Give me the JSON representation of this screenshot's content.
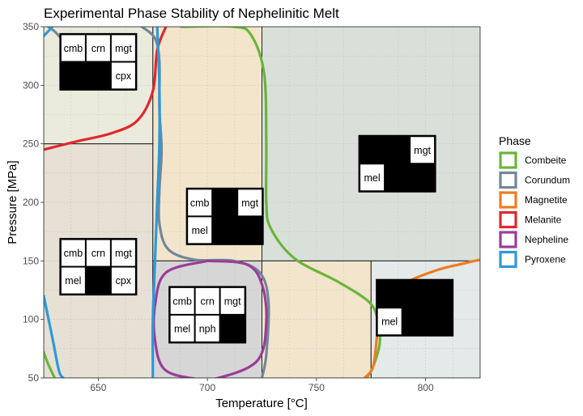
{
  "chart_data": {
    "type": "phase-diagram",
    "title": "Experimental Phase Stability of Nephelinitic Melt",
    "xlabel": "Temperature [°C]",
    "ylabel": "Pressure [MPa]",
    "xlim": [
      625,
      825
    ],
    "ylim": [
      50,
      350
    ],
    "x_ticks": [
      650,
      700,
      750,
      800
    ],
    "y_ticks": [
      50,
      100,
      150,
      200,
      250,
      300,
      350
    ],
    "legend": {
      "title": "Phase",
      "position": "right",
      "entries": [
        {
          "name": "Combeite",
          "color": "#6ab53a"
        },
        {
          "name": "Corundum",
          "color": "#72879a"
        },
        {
          "name": "Magnetite",
          "color": "#ef7b21"
        },
        {
          "name": "Melanite",
          "color": "#e0282c"
        },
        {
          "name": "Nepheline",
          "color": "#9a3d98"
        },
        {
          "name": "Pyroxene",
          "color": "#2b9ad9"
        }
      ]
    },
    "regions": [
      {
        "x": [
          625,
          675
        ],
        "y": [
          250,
          350
        ],
        "fill": "#ebebdd"
      },
      {
        "x": [
          625,
          675
        ],
        "y": [
          50,
          250
        ],
        "fill": "#e6e0d5"
      },
      {
        "x": [
          675,
          725
        ],
        "y": [
          150,
          350
        ],
        "fill": "#f2e5cc"
      },
      {
        "x": [
          675,
          725
        ],
        "y": [
          50,
          150
        ],
        "fill": "#d6d6d6"
      },
      {
        "x": [
          725,
          775
        ],
        "y": [
          50,
          150
        ],
        "fill": "#f2e5cc"
      },
      {
        "x": [
          725,
          825
        ],
        "y": [
          150,
          350
        ],
        "fill": "#d9e0d9"
      },
      {
        "x": [
          775,
          825
        ],
        "y": [
          50,
          150
        ],
        "fill": "#e4e9e9"
      }
    ],
    "phase_boundaries": [
      {
        "phase": "Combeite",
        "points": [
          [
            688,
            350
          ],
          [
            712,
            350
          ],
          [
            720,
            343
          ],
          [
            726,
            310
          ],
          [
            727,
            250
          ],
          [
            727,
            200
          ],
          [
            729,
            178
          ],
          [
            740,
            152
          ],
          [
            760,
            132
          ],
          [
            774,
            115
          ],
          [
            778,
            100
          ],
          [
            779,
            80
          ],
          [
            776,
            60
          ],
          [
            773,
            50
          ]
        ]
      },
      {
        "phase": "Combeite",
        "points": [
          [
            625,
            72
          ],
          [
            627,
            62
          ],
          [
            630,
            50
          ]
        ]
      },
      {
        "phase": "Corundum",
        "points": [
          [
            670,
            350
          ],
          [
            676,
            340
          ],
          [
            678,
            320
          ],
          [
            678,
            280
          ],
          [
            679,
            245
          ],
          [
            678,
            210
          ],
          [
            678,
            182
          ],
          [
            682,
            160
          ],
          [
            694,
            151
          ],
          [
            712,
            150
          ],
          [
            724,
            140
          ],
          [
            728,
            115
          ],
          [
            727,
            70
          ],
          [
            725,
            50
          ]
        ]
      },
      {
        "phase": "Corundum",
        "points": [
          [
            627,
            350
          ],
          [
            630,
            346
          ],
          [
            633,
            340
          ]
        ]
      },
      {
        "phase": "Magnetite",
        "points": [
          [
            772,
            50
          ],
          [
            776,
            60
          ],
          [
            778,
            90
          ],
          [
            780,
            110
          ],
          [
            790,
            130
          ],
          [
            805,
            142
          ],
          [
            818,
            148
          ],
          [
            825,
            151
          ]
        ]
      },
      {
        "phase": "Melanite",
        "points": [
          [
            625,
            245
          ],
          [
            640,
            252
          ],
          [
            656,
            259
          ],
          [
            668,
            270
          ],
          [
            675,
            295
          ],
          [
            677,
            330
          ],
          [
            681,
            350
          ]
        ]
      },
      {
        "phase": "Nepheline",
        "points": [
          [
            700,
            150
          ],
          [
            718,
            147
          ],
          [
            725,
            130
          ],
          [
            727,
            98
          ],
          [
            723,
            65
          ],
          [
            705,
            50
          ],
          [
            692,
            50
          ],
          [
            680,
            58
          ],
          [
            676,
            82
          ],
          [
            676,
            112
          ],
          [
            681,
            140
          ],
          [
            700,
            150
          ]
        ]
      },
      {
        "phase": "Pyroxene",
        "points": [
          [
            629,
            350
          ],
          [
            625,
            342
          ]
        ]
      },
      {
        "phase": "Pyroxene",
        "points": [
          [
            625,
            120
          ],
          [
            629,
            84
          ],
          [
            632,
            56
          ],
          [
            634,
            50
          ]
        ]
      },
      {
        "phase": "Pyroxene",
        "points": [
          [
            677,
            350
          ],
          [
            678,
            300
          ],
          [
            678,
            250
          ],
          [
            677,
            200
          ],
          [
            676,
            150
          ],
          [
            675,
            100
          ],
          [
            675,
            60
          ],
          [
            675,
            50
          ]
        ]
      }
    ],
    "label_grids": [
      {
        "pos": [
          650,
          320
        ],
        "rows": [
          [
            "cmb",
            "crn",
            "mgt"
          ],
          [
            null,
            null,
            "cpx"
          ]
        ]
      },
      {
        "pos": [
          650,
          145
        ],
        "rows": [
          [
            "cmb",
            "crn",
            "mgt"
          ],
          [
            "mel",
            null,
            "cpx"
          ]
        ]
      },
      {
        "pos": [
          700,
          104
        ],
        "rows": [
          [
            "cmb",
            "crn",
            "mgt"
          ],
          [
            "mel",
            "nph",
            null
          ]
        ]
      },
      {
        "pos": [
          708,
          188
        ],
        "rows": [
          [
            "cmb",
            null,
            "mgt"
          ],
          [
            "mel",
            null,
            null
          ]
        ]
      },
      {
        "pos": [
          787,
          233
        ],
        "rows": [
          [
            null,
            null,
            "mgt"
          ],
          [
            "mel",
            null,
            null
          ]
        ]
      },
      {
        "pos": [
          795,
          110
        ],
        "rows": [
          [
            null,
            null,
            null
          ],
          [
            "mel",
            null,
            null
          ]
        ]
      }
    ]
  }
}
